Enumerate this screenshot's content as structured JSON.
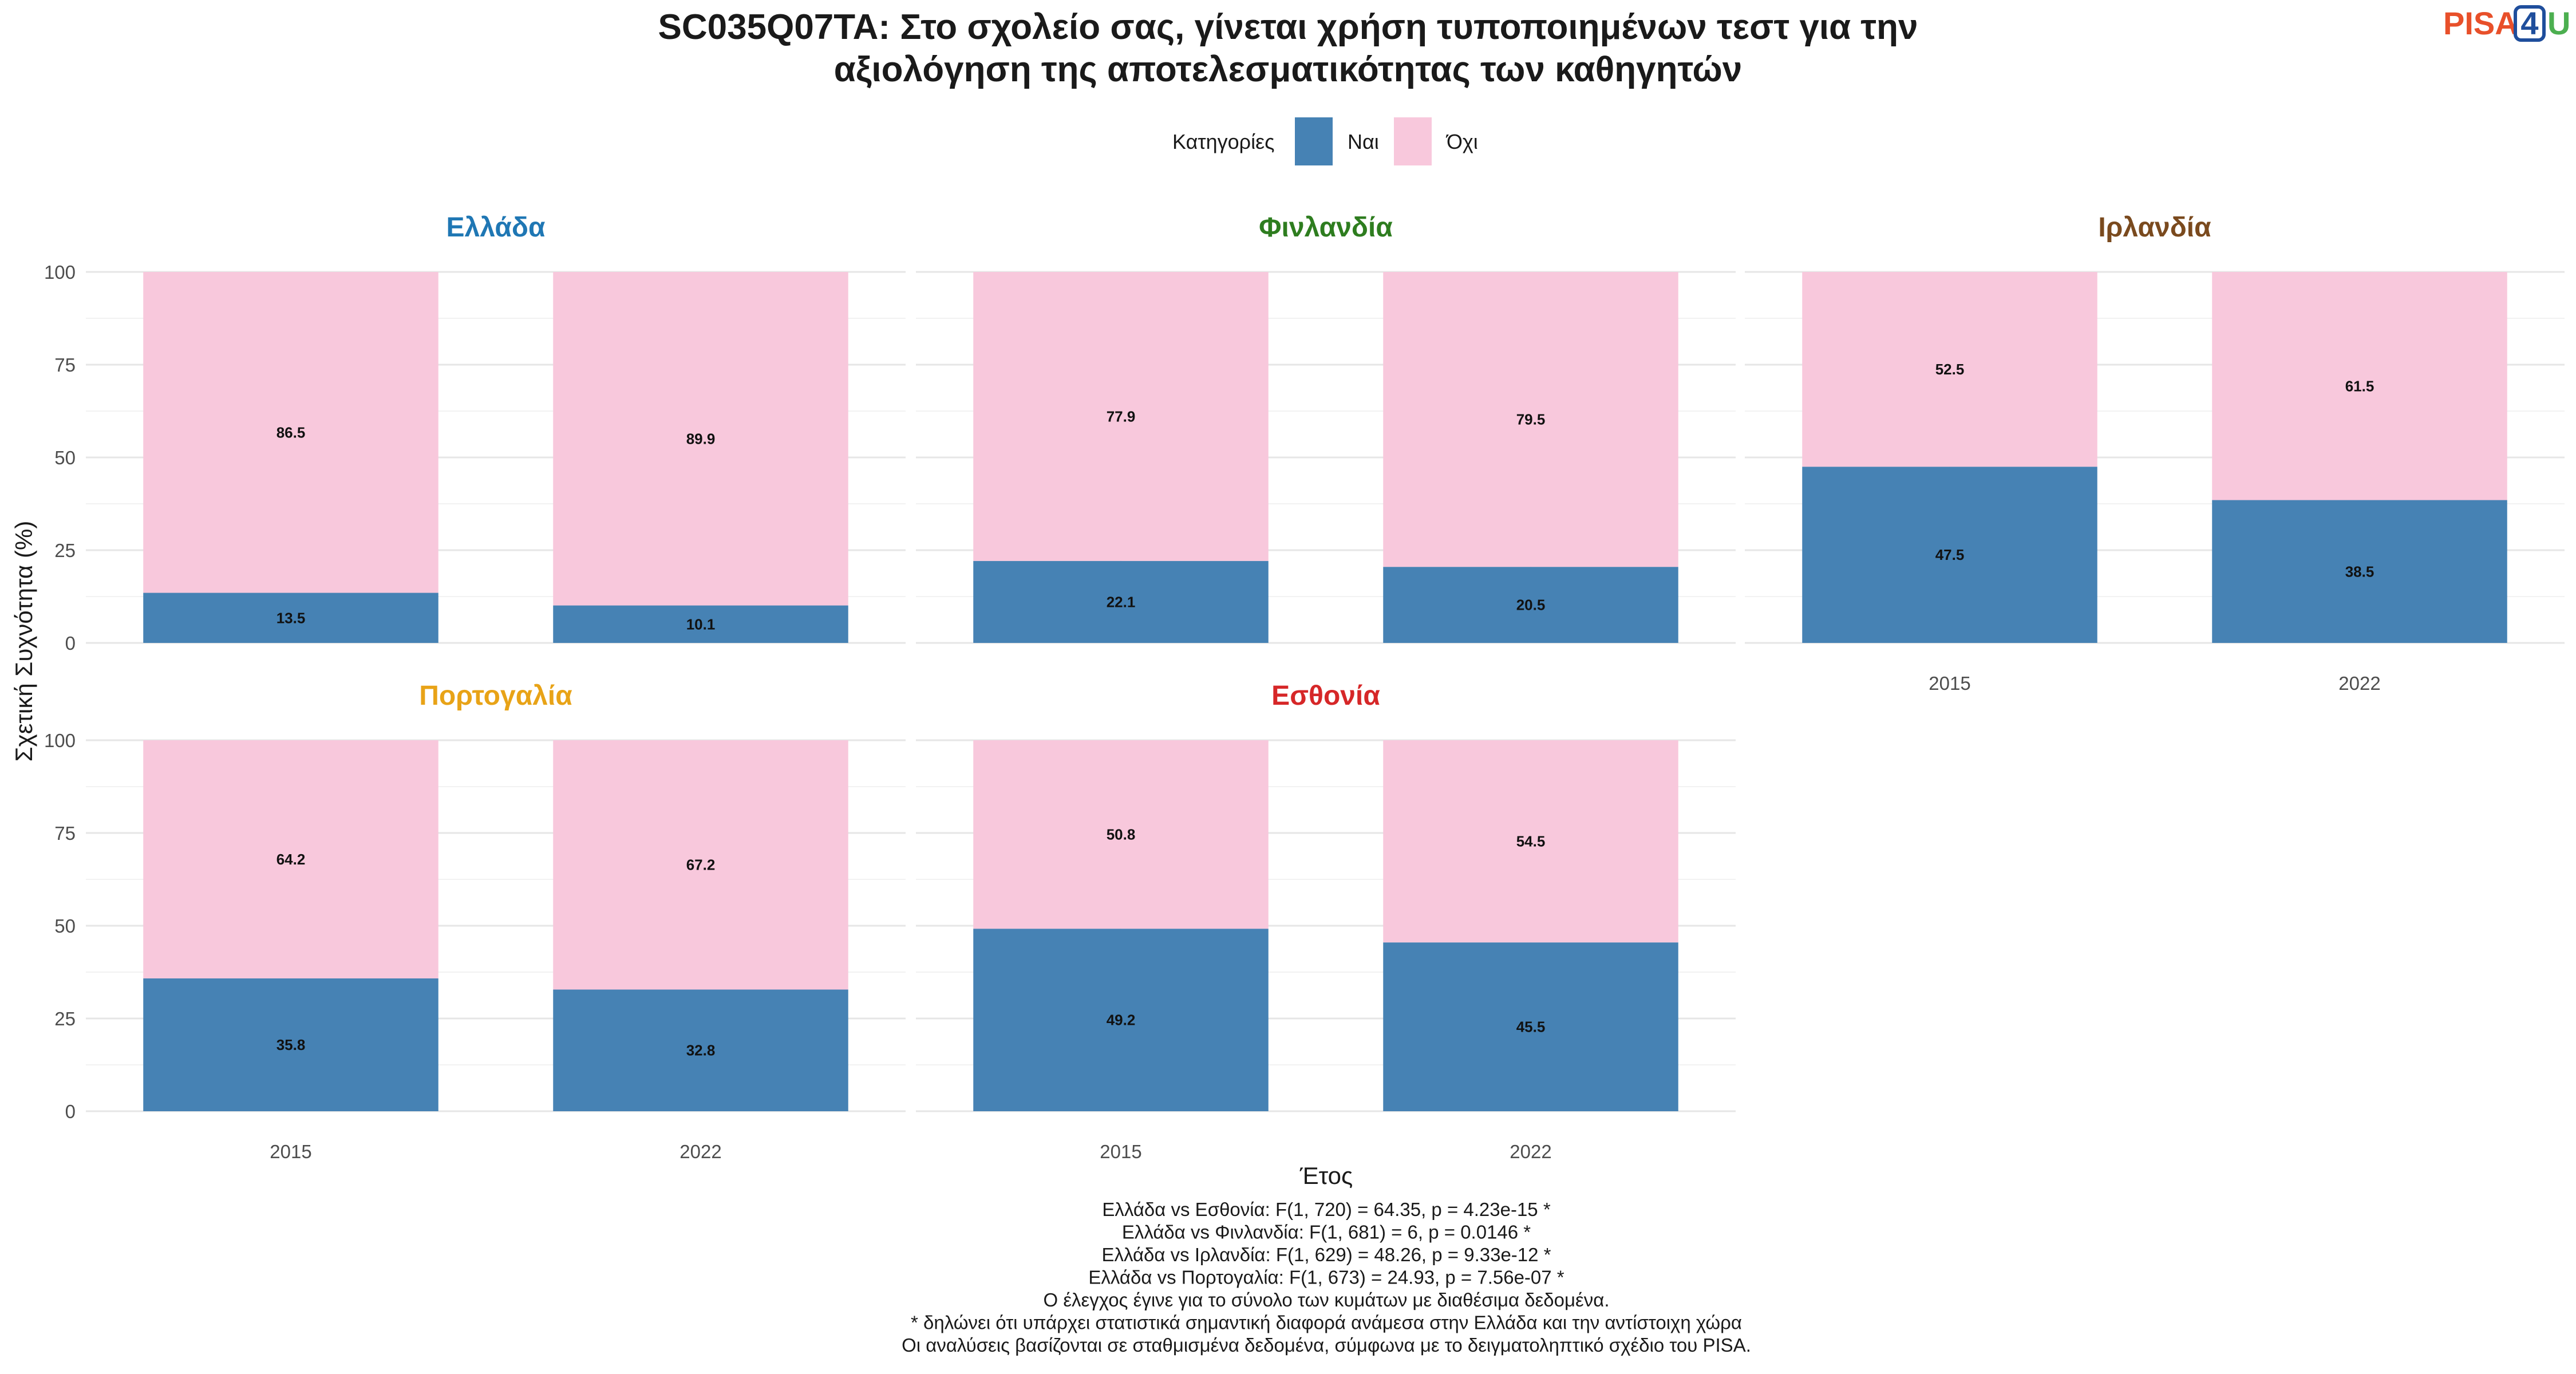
{
  "title_lines": [
    "SC035Q07TA: Στο σχολείο σας, γίνεται χρήση τυποποιημένων τεστ για την",
    "αξιολόγηση της αποτελεσματικότητας των καθηγητών"
  ],
  "logo": {
    "text": "PISA",
    "digit": "4",
    "suffix": "U",
    "colors": {
      "pisa": "#e8502a",
      "digit": "#1f4e9c",
      "u": "#4caf50"
    }
  },
  "legend": {
    "title": "Κατηγορίες",
    "items": [
      {
        "label": "Ναι",
        "color": "#4682b4"
      },
      {
        "label": "Όχι",
        "color": "#f8c8dc"
      }
    ]
  },
  "axes": {
    "ylabel": "Σχετική Συχνότητα (%)",
    "xlabel": "Έτος"
  },
  "notes": [
    "Ελλάδα vs Εσθονία: F(1, 720) = 64.35, p = 4.23e-15 *",
    "Ελλάδα vs Φινλανδία: F(1, 681) = 6, p = 0.0146 *",
    "Ελλάδα vs Ιρλανδία: F(1, 629) = 48.26, p = 9.33e-12 *",
    "Ελλάδα vs Πορτογαλία: F(1, 673) = 24.93, p = 7.56e-07 *",
    "Ο έλεγχος έγινε για το σύνολο των κυμάτων με διαθέσιμα δεδομένα.",
    "* δηλώνει ότι υπάρχει στατιστικά σημαντική διαφορά ανάμεσα στην Ελλάδα και την αντίστοιχη χώρα",
    "Οι αναλύσεις βασίζονται σε σταθμισμένα δεδομένα, σύμφωνα με το δειγματοληπτικό σχέδιο του PISA."
  ],
  "chart_data": {
    "type": "bar",
    "stacked": true,
    "categories": [
      "2015",
      "2022"
    ],
    "ylim": [
      0,
      100
    ],
    "yticks": [
      "0",
      "25",
      "50",
      "75",
      "100"
    ],
    "grid": true,
    "legend_position": "top",
    "panels": [
      {
        "name": "Ελλάδα",
        "color": "#1f77b4",
        "series": [
          {
            "name": "Ναι",
            "values": [
              13.5,
              10.1
            ],
            "labels": [
              "13.5",
              "10.1"
            ]
          },
          {
            "name": "Όχι",
            "values": [
              86.5,
              89.9
            ],
            "labels": [
              "86.5",
              "89.9"
            ]
          }
        ]
      },
      {
        "name": "Φινλανδία",
        "color": "#2e7d1f",
        "series": [
          {
            "name": "Ναι",
            "values": [
              22.1,
              20.5
            ],
            "labels": [
              "22.1",
              "20.5"
            ]
          },
          {
            "name": "Όχι",
            "values": [
              77.9,
              79.5
            ],
            "labels": [
              "77.9",
              "79.5"
            ]
          }
        ]
      },
      {
        "name": "Ιρλανδία",
        "color": "#7a4a1e",
        "series": [
          {
            "name": "Ναι",
            "values": [
              47.5,
              38.5
            ],
            "labels": [
              "47.5",
              "38.5"
            ]
          },
          {
            "name": "Όχι",
            "values": [
              52.5,
              61.5
            ],
            "labels": [
              "52.5",
              "61.5"
            ]
          }
        ]
      },
      {
        "name": "Πορτογαλία",
        "color": "#e8a317",
        "series": [
          {
            "name": "Ναι",
            "values": [
              35.8,
              32.8
            ],
            "labels": [
              "35.8",
              "32.8"
            ]
          },
          {
            "name": "Όχι",
            "values": [
              64.2,
              67.2
            ],
            "labels": [
              "64.2",
              "67.2"
            ]
          }
        ]
      },
      {
        "name": "Εσθονία",
        "color": "#d62728",
        "series": [
          {
            "name": "Ναι",
            "values": [
              49.2,
              45.5
            ],
            "labels": [
              "49.2",
              "45.5"
            ]
          },
          {
            "name": "Όχι",
            "values": [
              50.8,
              54.5
            ],
            "labels": [
              "50.8",
              "54.5"
            ]
          }
        ]
      }
    ]
  }
}
